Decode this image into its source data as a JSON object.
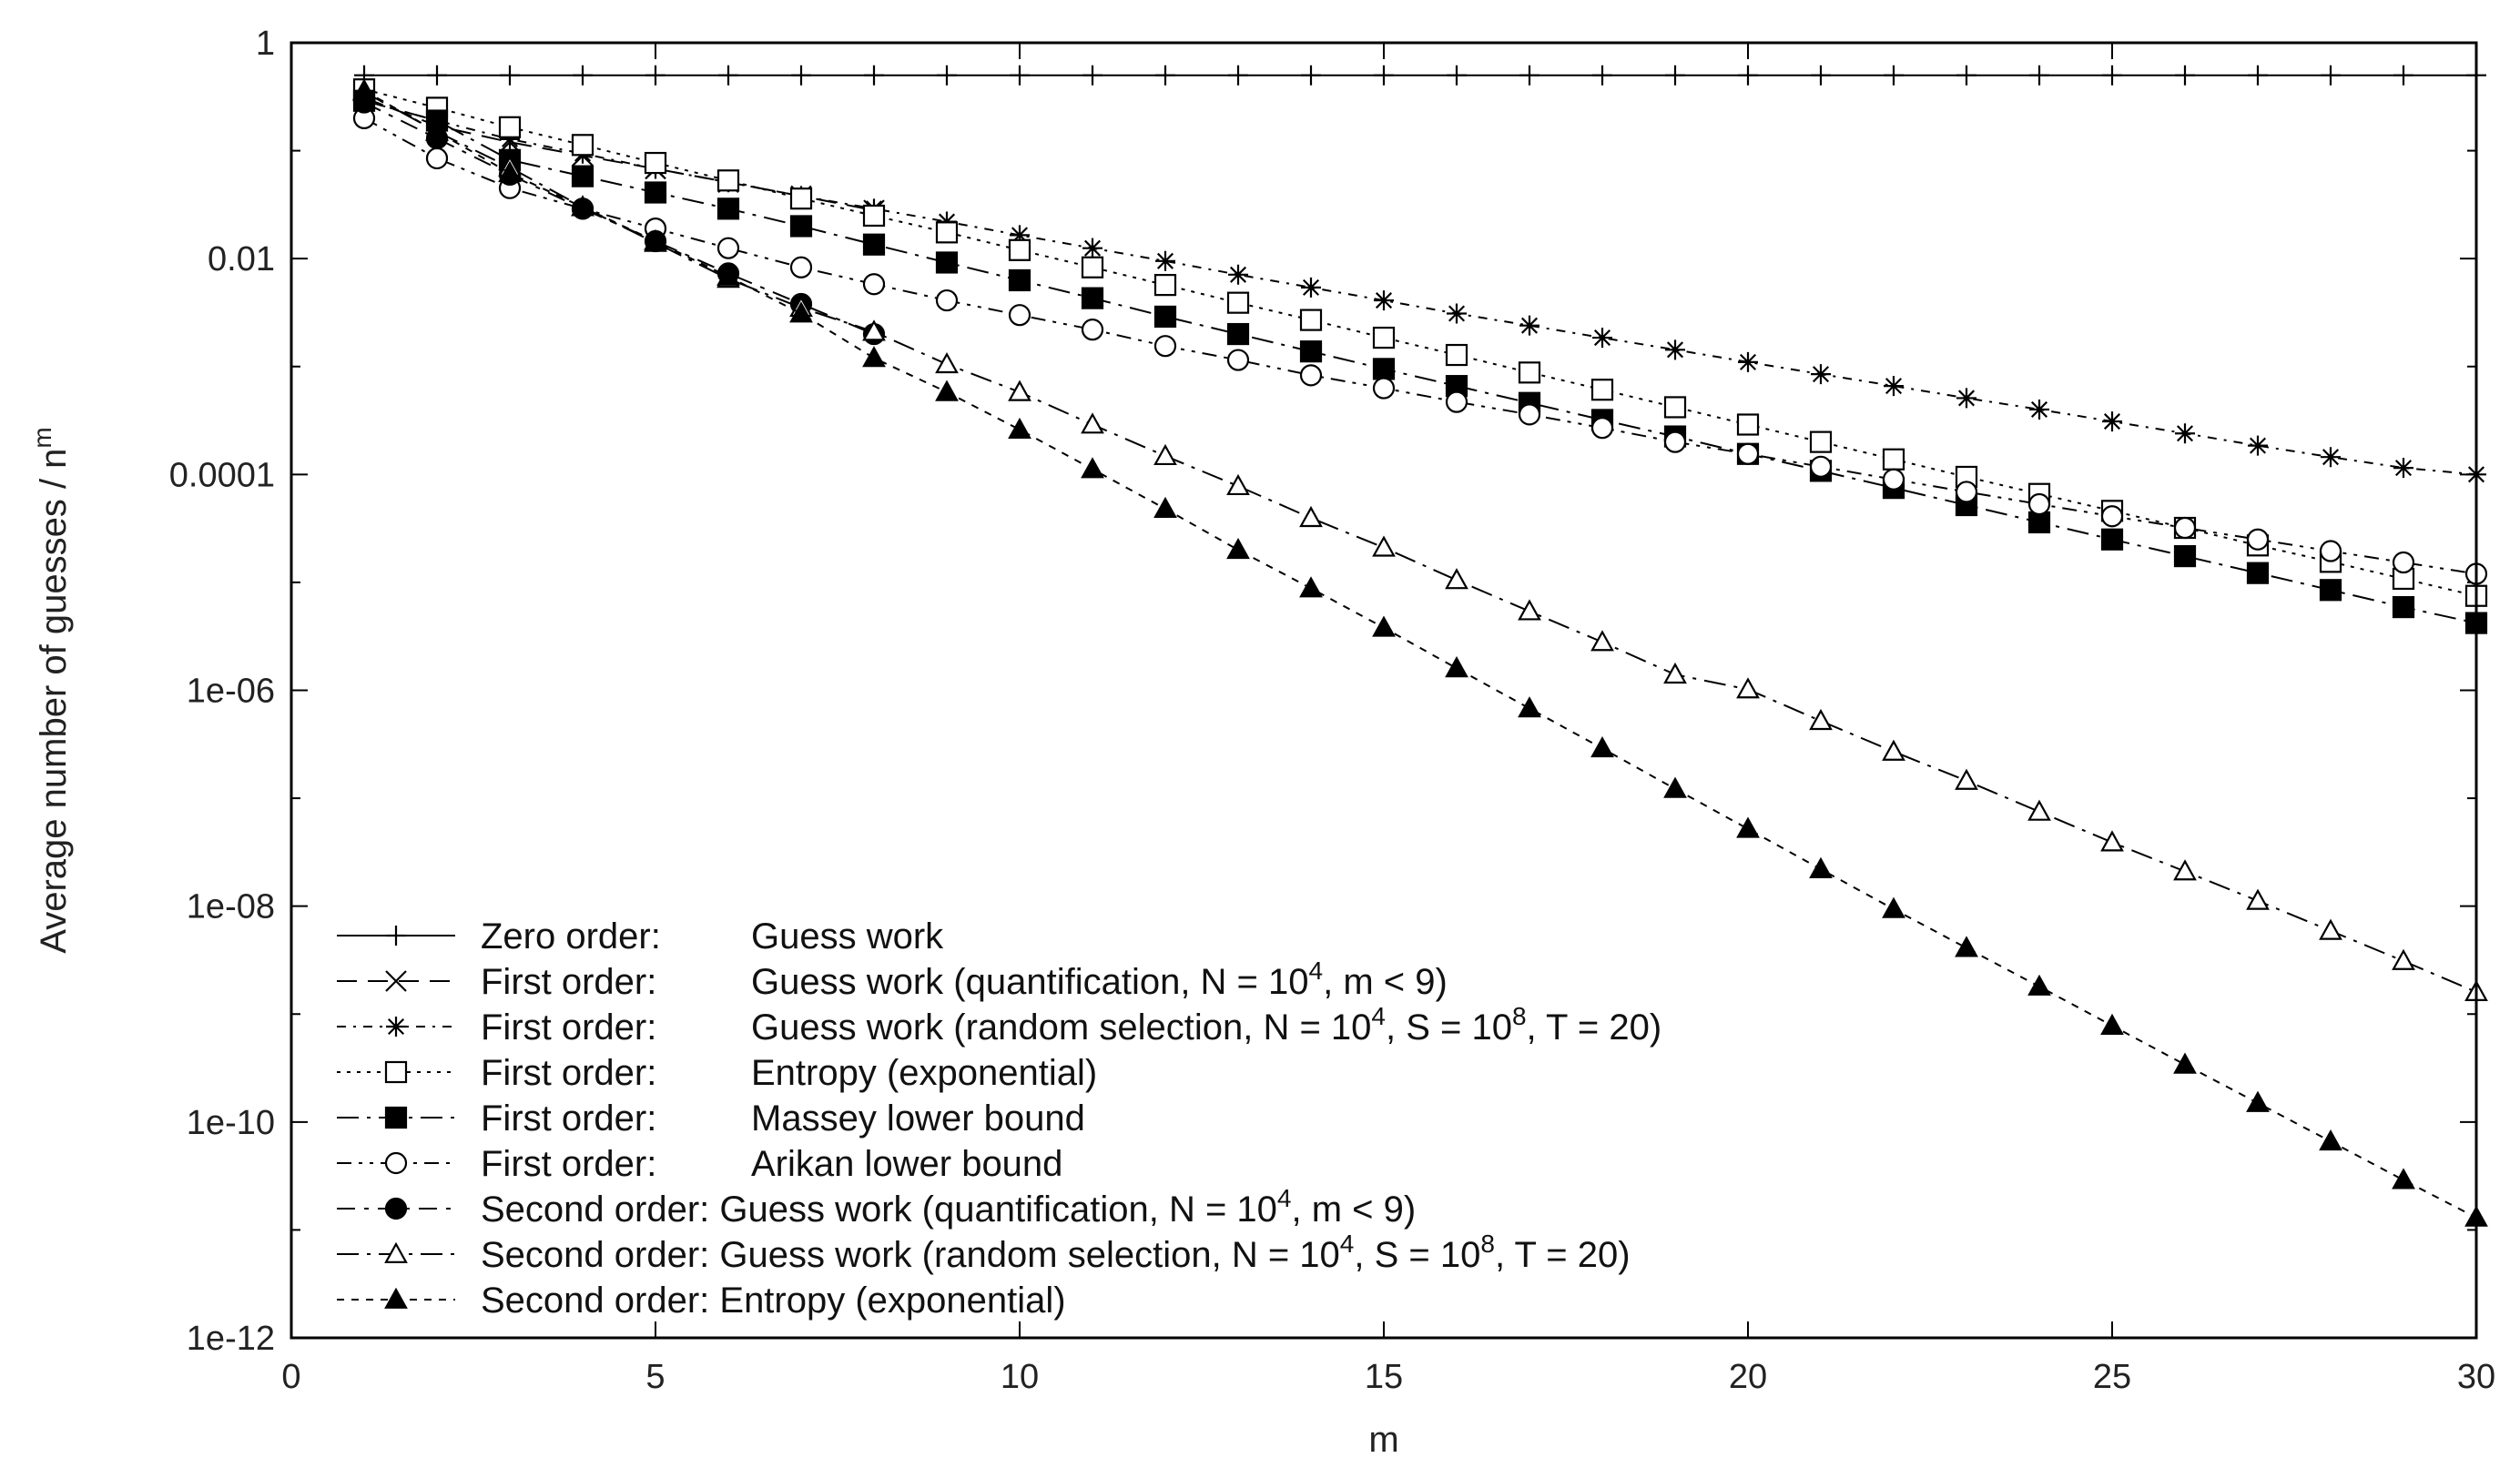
{
  "chart_data": {
    "type": "line",
    "title": "",
    "xlabel": "m",
    "ylabel": "Average number of guesses / n",
    "ylabel_superscript": "m",
    "xlim": [
      0,
      30
    ],
    "ylim": [
      1e-12,
      1
    ],
    "y_scale": "log",
    "grid": false,
    "legend_position": "bottom-left",
    "x_ticks": [
      "0",
      "5",
      "10",
      "15",
      "20",
      "25",
      "30"
    ],
    "y_ticks": [
      "1e-12",
      "1e-10",
      "1e-08",
      "1e-06",
      "0.0001",
      "0.01",
      "1"
    ],
    "series": [
      {
        "name": "Zero order:     Guess work",
        "line": "solid",
        "marker": "plus",
        "x": [
          1,
          2,
          3,
          4,
          5,
          6,
          7,
          8,
          9,
          10,
          11,
          12,
          13,
          14,
          15,
          16,
          17,
          18,
          19,
          20,
          21,
          22,
          23,
          24,
          25,
          26,
          27,
          28,
          29,
          30
        ],
        "y": [
          0.5,
          0.5,
          0.5,
          0.5,
          0.5,
          0.5,
          0.5,
          0.5,
          0.5,
          0.5,
          0.5,
          0.5,
          0.5,
          0.5,
          0.5,
          0.5,
          0.5,
          0.5,
          0.5,
          0.5,
          0.5,
          0.5,
          0.5,
          0.5,
          0.5,
          0.5,
          0.5,
          0.5,
          0.5,
          0.5
        ]
      },
      {
        "name": "First order:      Guess work (quantification, N = 10^4, m < 9)",
        "line": "dashed",
        "marker": "cross",
        "x": [
          1,
          2,
          3,
          4,
          5,
          6,
          7,
          8
        ],
        "y": [
          0.31,
          0.17,
          0.12,
          0.09,
          0.068,
          0.051,
          0.038,
          0.028
        ]
      },
      {
        "name": "First order:      Guess work (random selection, N = 10^4, S = 10^8, T = 20)",
        "line": "dash-dot-fine",
        "marker": "star",
        "x": [
          1,
          2,
          3,
          4,
          5,
          6,
          7,
          8,
          9,
          10,
          11,
          12,
          13,
          14,
          15,
          16,
          17,
          18,
          19,
          20,
          21,
          22,
          23,
          24,
          25,
          26,
          27,
          28,
          29,
          30
        ],
        "y": [
          0.29,
          0.19,
          0.128,
          0.094,
          0.068,
          0.051,
          0.038,
          0.029,
          0.022,
          0.0165,
          0.0125,
          0.0095,
          0.0071,
          0.0054,
          0.0041,
          0.0031,
          0.0024,
          0.00185,
          0.00143,
          0.0011,
          0.00085,
          0.00066,
          0.00051,
          0.0004,
          0.00031,
          0.00024,
          0.000185,
          0.000145,
          0.000115,
          0.0001
        ]
      },
      {
        "name": "First order:      Entropy (exponential)",
        "line": "dotted",
        "marker": "square-open",
        "x": [
          1,
          2,
          3,
          4,
          5,
          6,
          7,
          8,
          9,
          10,
          11,
          12,
          13,
          14,
          15,
          16,
          17,
          18,
          19,
          20,
          21,
          22,
          23,
          24,
          25,
          26,
          27,
          28,
          29,
          30
        ],
        "y": [
          0.37,
          0.25,
          0.165,
          0.113,
          0.077,
          0.053,
          0.036,
          0.025,
          0.0175,
          0.012,
          0.0083,
          0.0057,
          0.0039,
          0.0027,
          0.00185,
          0.00128,
          0.00088,
          0.00061,
          0.00042,
          0.00029,
          0.0002,
          0.000138,
          9.5e-05,
          6.6e-05,
          4.6e-05,
          3.2e-05,
          2.2e-05,
          1.55e-05,
          1.08e-05,
          7.5e-06
        ]
      },
      {
        "name": "First order:      Massey lower bound",
        "line": "dash-dot",
        "marker": "square-filled",
        "x": [
          1,
          2,
          3,
          4,
          5,
          6,
          7,
          8,
          9,
          10,
          11,
          12,
          13,
          14,
          15,
          16,
          17,
          18,
          19,
          20,
          21,
          22,
          23,
          24,
          25,
          26,
          27,
          28,
          29,
          30
        ],
        "y": [
          0.29,
          0.19,
          0.082,
          0.058,
          0.041,
          0.029,
          0.02,
          0.0135,
          0.0092,
          0.0063,
          0.0043,
          0.0029,
          0.002,
          0.00138,
          0.00095,
          0.00066,
          0.00046,
          0.00032,
          0.000225,
          0.000155,
          0.000108,
          7.5e-05,
          5.2e-05,
          3.6e-05,
          2.5e-05,
          1.75e-05,
          1.22e-05,
          8.5e-06,
          5.9e-06,
          4.2e-06
        ]
      },
      {
        "name": "First order:      Arikan lower bound",
        "line": "dash-dot-dot",
        "marker": "circle-open",
        "x": [
          1,
          2,
          3,
          4,
          5,
          6,
          7,
          8,
          9,
          10,
          11,
          12,
          13,
          14,
          15,
          16,
          17,
          18,
          19,
          20,
          21,
          22,
          23,
          24,
          25,
          26,
          27,
          28,
          29,
          30
        ],
        "y": [
          0.2,
          0.085,
          0.045,
          0.029,
          0.019,
          0.0125,
          0.0083,
          0.0058,
          0.0041,
          0.003,
          0.0022,
          0.00155,
          0.00115,
          0.00083,
          0.00063,
          0.00047,
          0.00036,
          0.00027,
          0.0002,
          0.000155,
          0.000118,
          9e-05,
          6.9e-05,
          5.3e-05,
          4.1e-05,
          3.2e-05,
          2.5e-05,
          1.95e-05,
          1.53e-05,
          1.2e-05
        ]
      },
      {
        "name": "Second order: Guess work (quantification, N = 10^4, m < 9)",
        "line": "dashed-dot",
        "marker": "circle-filled",
        "x": [
          1,
          2,
          3,
          4,
          5,
          6,
          7,
          8
        ],
        "y": [
          0.28,
          0.13,
          0.06,
          0.029,
          0.0145,
          0.0073,
          0.0038,
          0.002
        ]
      },
      {
        "name": "Second order: Guess work (random selection, N = 10^4, S = 10^8, T = 20)",
        "line": "dash-dot",
        "marker": "triangle-open",
        "x": [
          1,
          2,
          3,
          4,
          5,
          6,
          7,
          8,
          9,
          10,
          11,
          12,
          13,
          14,
          15,
          16,
          17,
          18,
          19,
          20,
          21,
          22,
          23,
          24,
          25,
          26,
          27,
          28,
          29,
          30
        ],
        "y": [
          0.35,
          0.15,
          0.07,
          0.03,
          0.014,
          0.0065,
          0.0035,
          0.0021,
          0.00105,
          0.00058,
          0.00029,
          0.000148,
          7.8e-05,
          3.95e-05,
          2.1e-05,
          1.05e-05,
          5.4e-06,
          2.8e-06,
          1.4e-06,
          1.02e-06,
          5.2e-07,
          2.7e-07,
          1.45e-07,
          7.5e-08,
          3.9e-08,
          2.1e-08,
          1.12e-08,
          5.9e-09,
          3.1e-09,
          1.6e-09
        ]
      },
      {
        "name": "Second order: Entropy (exponential)",
        "line": "dotted-dashed",
        "marker": "triangle-filled",
        "x": [
          1,
          2,
          3,
          4,
          5,
          6,
          7,
          8,
          9,
          10,
          11,
          12,
          13,
          14,
          15,
          16,
          17,
          18,
          19,
          20,
          21,
          22,
          23,
          24,
          25,
          26,
          27,
          28,
          29,
          30
        ],
        "y": [
          0.36,
          0.15,
          0.062,
          0.03,
          0.0145,
          0.0068,
          0.0031,
          0.0012,
          0.00058,
          0.00026,
          0.000112,
          4.8e-05,
          2e-05,
          8.8e-06,
          3.8e-06,
          1.6e-06,
          6.8e-07,
          2.9e-07,
          1.22e-07,
          5.2e-08,
          2.2e-08,
          9.4e-09,
          4.1e-09,
          1.8e-09,
          7.8e-10,
          3.4e-10,
          1.5e-10,
          6.6e-11,
          2.9e-11,
          1.3e-11
        ]
      }
    ]
  },
  "legend": {
    "entries": [
      {
        "prefix": "Zero order:",
        "label": "Guess work",
        "sup1": "",
        "mid": "",
        "sup2": "",
        "tail": ""
      },
      {
        "prefix": "First order:",
        "label": "Guess work (quantification, N = 10",
        "sup1": "4",
        "mid": ", m < 9)",
        "sup2": "",
        "tail": ""
      },
      {
        "prefix": "First order:",
        "label": "Guess work (random selection, N = 10",
        "sup1": "4",
        "mid": ", S = 10",
        "sup2": "8",
        "tail": ", T = 20)"
      },
      {
        "prefix": "First order:",
        "label": "Entropy (exponential)",
        "sup1": "",
        "mid": "",
        "sup2": "",
        "tail": ""
      },
      {
        "prefix": "First order:",
        "label": "Massey lower bound",
        "sup1": "",
        "mid": "",
        "sup2": "",
        "tail": ""
      },
      {
        "prefix": "First order:",
        "label": "Arikan lower bound",
        "sup1": "",
        "mid": "",
        "sup2": "",
        "tail": ""
      },
      {
        "prefix": "Second order: Guess work (quantification, N = 10",
        "label": "",
        "sup1": "4",
        "mid": ", m < 9)",
        "sup2": "",
        "tail": ""
      },
      {
        "prefix": "Second order: Guess work (random selection, N = 10",
        "label": "",
        "sup1": "4",
        "mid": ", S = 10",
        "sup2": "8",
        "tail": ", T = 20)"
      },
      {
        "prefix": "Second order: Entropy (exponential)",
        "label": "",
        "sup1": "",
        "mid": "",
        "sup2": "",
        "tail": ""
      }
    ]
  }
}
